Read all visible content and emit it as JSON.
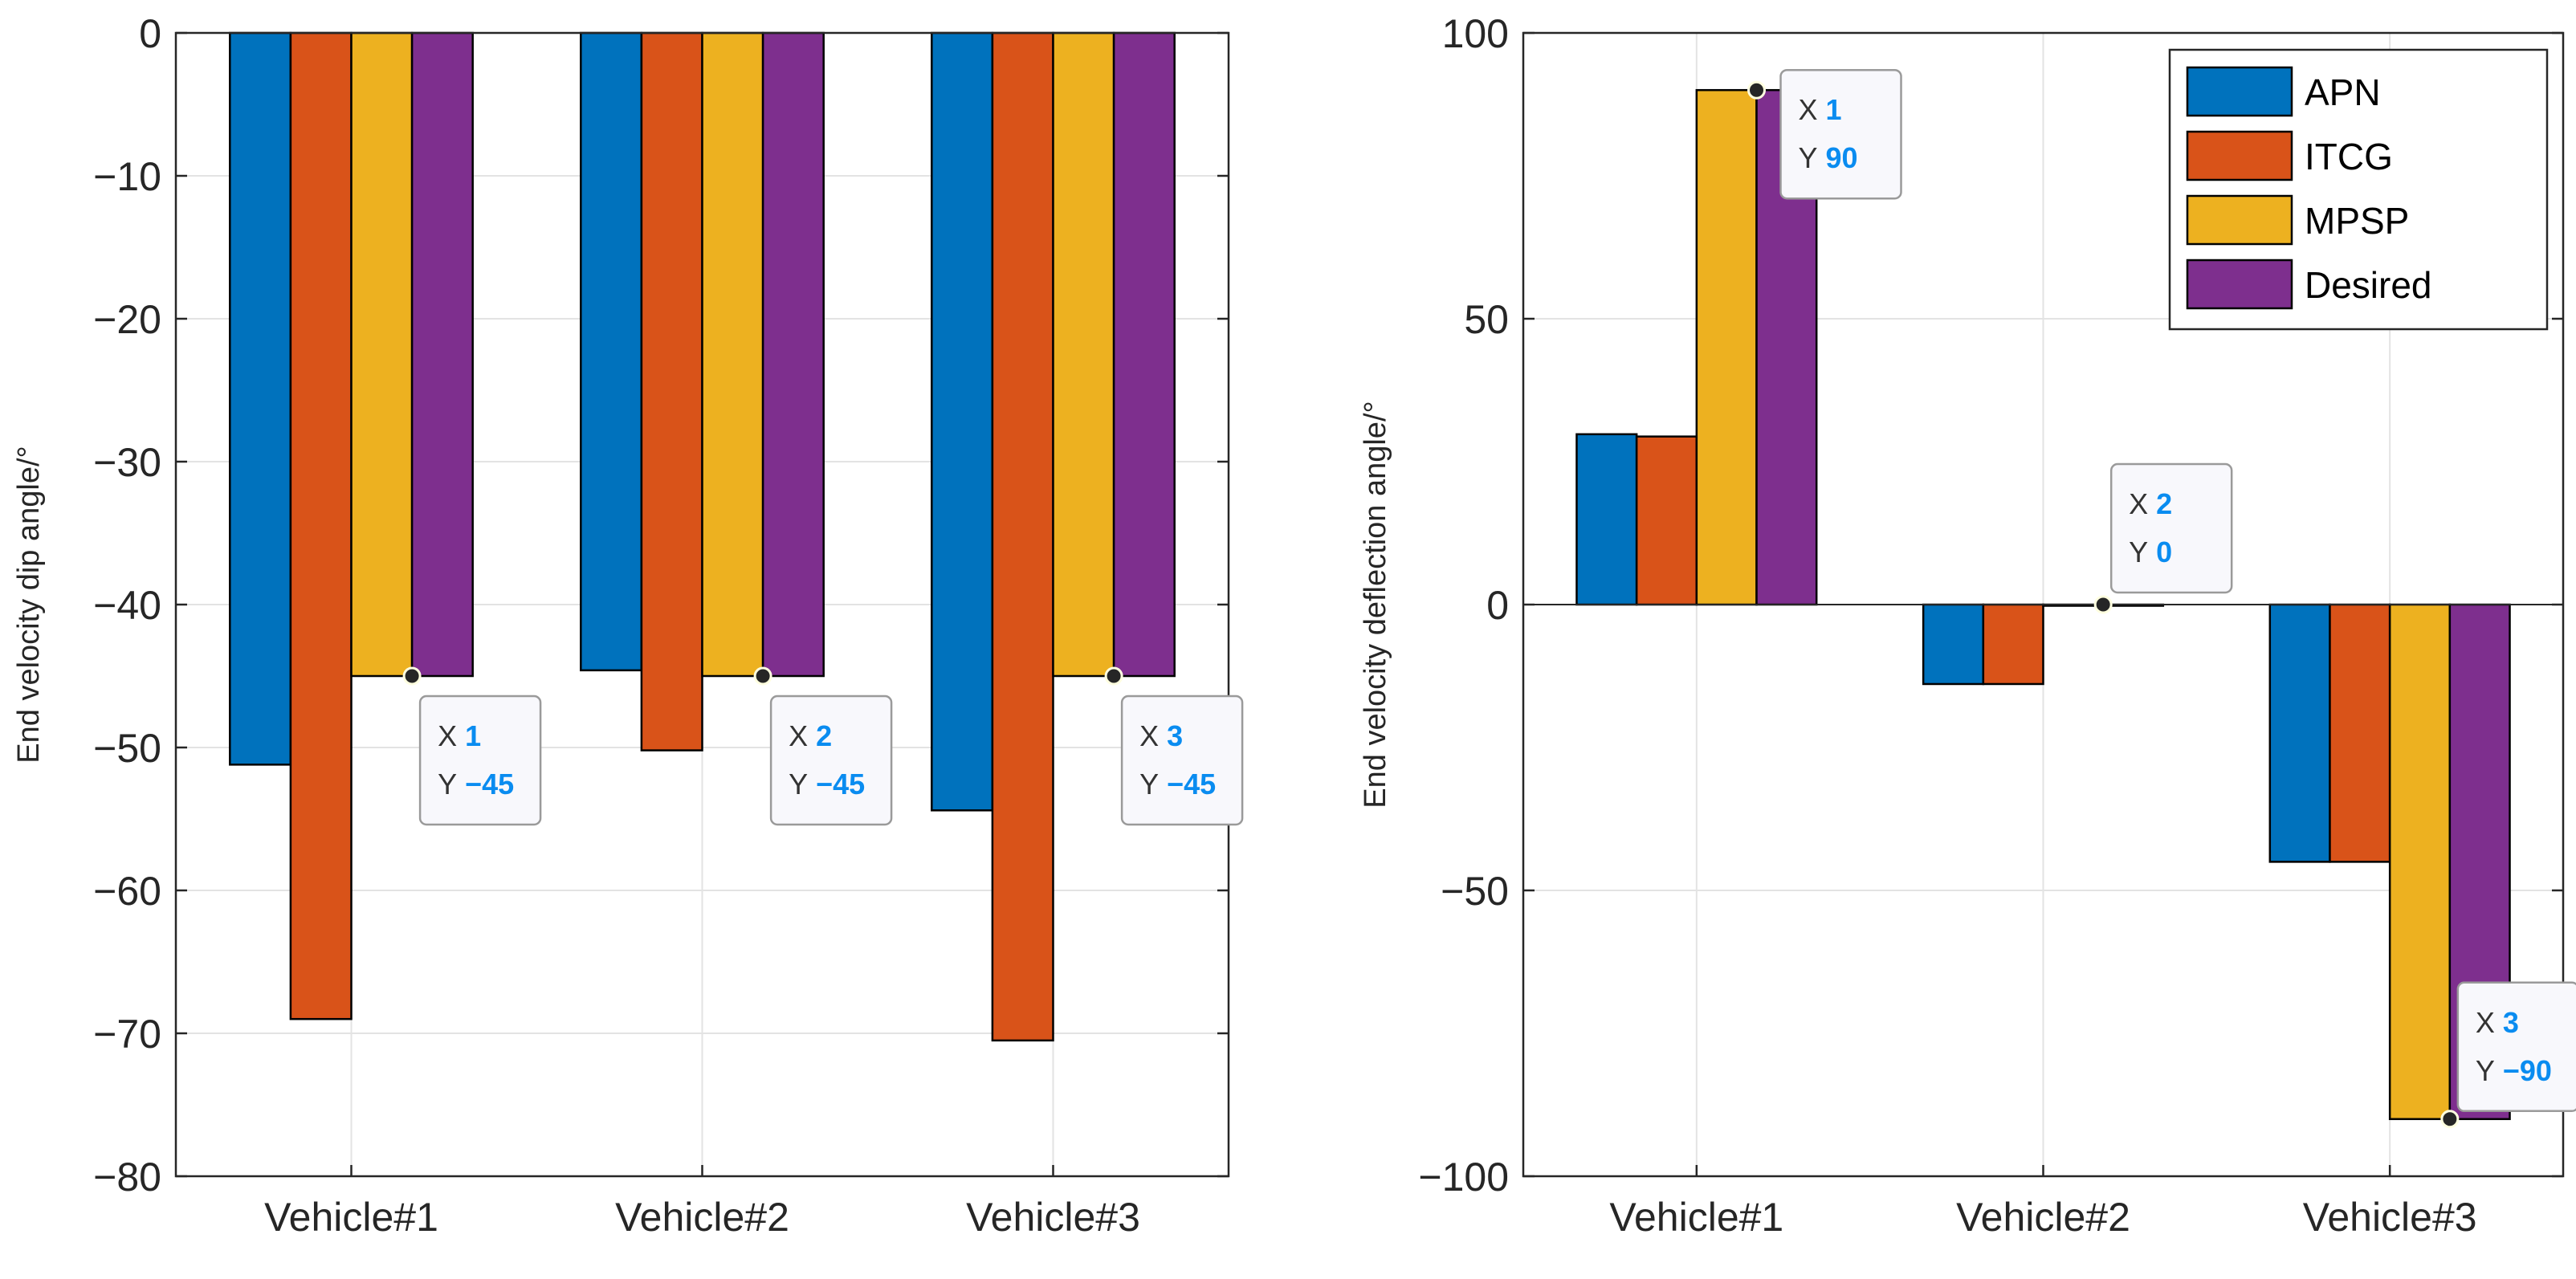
{
  "chart_data": [
    {
      "type": "bar",
      "categories": [
        "Vehicle#1",
        "Vehicle#2",
        "Vehicle#3"
      ],
      "series": [
        {
          "name": "APN",
          "color": "#0072bd",
          "values": [
            -51.2,
            -44.6,
            -54.4
          ]
        },
        {
          "name": "ITCG",
          "color": "#d95319",
          "values": [
            -69.0,
            -50.2,
            -70.5
          ]
        },
        {
          "name": "MPSP",
          "color": "#edb120",
          "values": [
            -45,
            -45,
            -45
          ]
        },
        {
          "name": "Desired",
          "color": "#7e2f8e",
          "values": [
            -45,
            -45,
            -45
          ]
        }
      ],
      "ylabel": "End velocity dip angle/°",
      "xlabel": "",
      "ylim": [
        -80,
        0
      ],
      "yticks": [
        "0",
        "-10",
        "-20",
        "-30",
        "-40",
        "-50",
        "-60",
        "-70",
        "-80"
      ],
      "ytick_values": [
        0,
        -10,
        -20,
        -30,
        -40,
        -50,
        -60,
        -70,
        -80
      ],
      "grid": true,
      "legend": null,
      "datatips": [
        {
          "series": "Desired",
          "x_label": "X",
          "x": "1",
          "y_label": "Y",
          "y": "-45"
        },
        {
          "series": "Desired",
          "x_label": "X",
          "x": "2",
          "y_label": "Y",
          "y": "-45"
        },
        {
          "series": "Desired",
          "x_label": "X",
          "x": "3",
          "y_label": "Y",
          "y": "-45"
        }
      ]
    },
    {
      "type": "bar",
      "categories": [
        "Vehicle#1",
        "Vehicle#2",
        "Vehicle#3"
      ],
      "series": [
        {
          "name": "APN",
          "color": "#0072bd",
          "values": [
            29.8,
            -13.9,
            -45.0
          ]
        },
        {
          "name": "ITCG",
          "color": "#d95319",
          "values": [
            29.4,
            -13.9,
            -45.0
          ]
        },
        {
          "name": "MPSP",
          "color": "#edb120",
          "values": [
            90,
            0,
            -90
          ]
        },
        {
          "name": "Desired",
          "color": "#7e2f8e",
          "values": [
            90,
            0,
            -90
          ]
        }
      ],
      "ylabel": "End velocity deflection angle/°",
      "xlabel": "",
      "ylim": [
        -100,
        100
      ],
      "yticks": [
        "100",
        "50",
        "0",
        "-50",
        "-100"
      ],
      "ytick_values": [
        100,
        50,
        0,
        -50,
        -100
      ],
      "grid": true,
      "legend": "top-right",
      "datatips": [
        {
          "series": "Desired",
          "x_label": "X",
          "x": "1",
          "y_label": "Y",
          "y": "90"
        },
        {
          "series": "Desired",
          "x_label": "X",
          "x": "2",
          "y_label": "Y",
          "y": "0"
        },
        {
          "series": "Desired",
          "x_label": "X",
          "x": "3",
          "y_label": "Y",
          "y": "-90"
        }
      ]
    }
  ]
}
